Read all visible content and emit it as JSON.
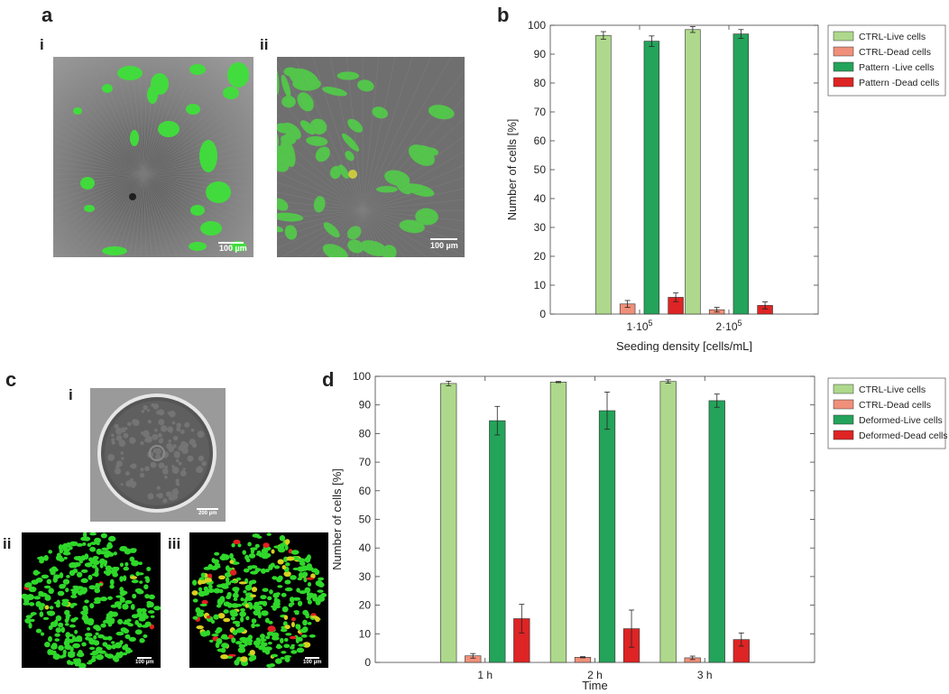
{
  "panels": {
    "a": {
      "letter": "a",
      "sublabels": [
        "i",
        "ii"
      ],
      "scale_bars": [
        "100 µm",
        "100 µm"
      ]
    },
    "b": {
      "letter": "b"
    },
    "c": {
      "letter": "c",
      "sublabels": [
        "i",
        "ii",
        "iii"
      ],
      "scale_bars": [
        "200 µm",
        "100 µm",
        "100 µm"
      ]
    },
    "d": {
      "letter": "d"
    }
  },
  "colors": {
    "ctrl_live": "#aed98c",
    "ctrl_dead": "#f0907a",
    "test_live": "#24a35a",
    "test_dead": "#de2424"
  },
  "chart_data": [
    {
      "id": "b",
      "type": "bar",
      "title": "",
      "xlabel": "Seeding density [cells/mL]",
      "ylabel": "Number of cells [%]",
      "ylim": [
        0,
        100
      ],
      "yticks": [
        0,
        10,
        20,
        30,
        40,
        50,
        60,
        70,
        80,
        90,
        100
      ],
      "categories": [
        {
          "base": "1·10",
          "exp": "5"
        },
        {
          "base": "2·10",
          "exp": "5"
        }
      ],
      "legend_position": "top-right",
      "grid": false,
      "series": [
        {
          "name": "CTRL-Live cells",
          "color": "#aed98c",
          "values": [
            96.5,
            98.5
          ],
          "errors": [
            1.3,
            1.0
          ]
        },
        {
          "name": "CTRL-Dead cells",
          "color": "#f0907a",
          "values": [
            3.5,
            1.5
          ],
          "errors": [
            1.2,
            0.8
          ]
        },
        {
          "name": "Pattern -Live cells",
          "color": "#24a35a",
          "values": [
            94.5,
            97.0
          ],
          "errors": [
            1.8,
            1.5
          ]
        },
        {
          "name": "Pattern -Dead cells",
          "color": "#de2424",
          "values": [
            5.8,
            3.0
          ],
          "errors": [
            1.5,
            1.2
          ]
        }
      ]
    },
    {
      "id": "d",
      "type": "bar",
      "title": "",
      "xlabel": "Time",
      "ylabel": "Number of cells [%]",
      "ylim": [
        0,
        100
      ],
      "yticks": [
        0,
        10,
        20,
        30,
        40,
        50,
        60,
        70,
        80,
        90,
        100
      ],
      "categories": [
        {
          "base": "1 h",
          "exp": ""
        },
        {
          "base": "2 h",
          "exp": ""
        },
        {
          "base": "3 h",
          "exp": ""
        }
      ],
      "legend_position": "top-right",
      "grid": false,
      "series": [
        {
          "name": "CTRL-Live cells",
          "color": "#aed98c",
          "values": [
            97.5,
            98.0,
            98.2
          ],
          "errors": [
            0.8,
            0.2,
            0.6
          ]
        },
        {
          "name": "CTRL-Dead cells",
          "color": "#f0907a",
          "values": [
            2.3,
            1.8,
            1.6
          ],
          "errors": [
            0.8,
            0.2,
            0.6
          ]
        },
        {
          "name": "Deformed-Live cells",
          "color": "#24a35a",
          "values": [
            84.5,
            88.0,
            91.5
          ],
          "errors": [
            5.0,
            6.5,
            2.3
          ]
        },
        {
          "name": "Deformed-Dead cells",
          "color": "#de2424",
          "values": [
            15.3,
            11.8,
            8.0
          ],
          "errors": [
            5.0,
            6.5,
            2.3
          ]
        }
      ]
    }
  ]
}
